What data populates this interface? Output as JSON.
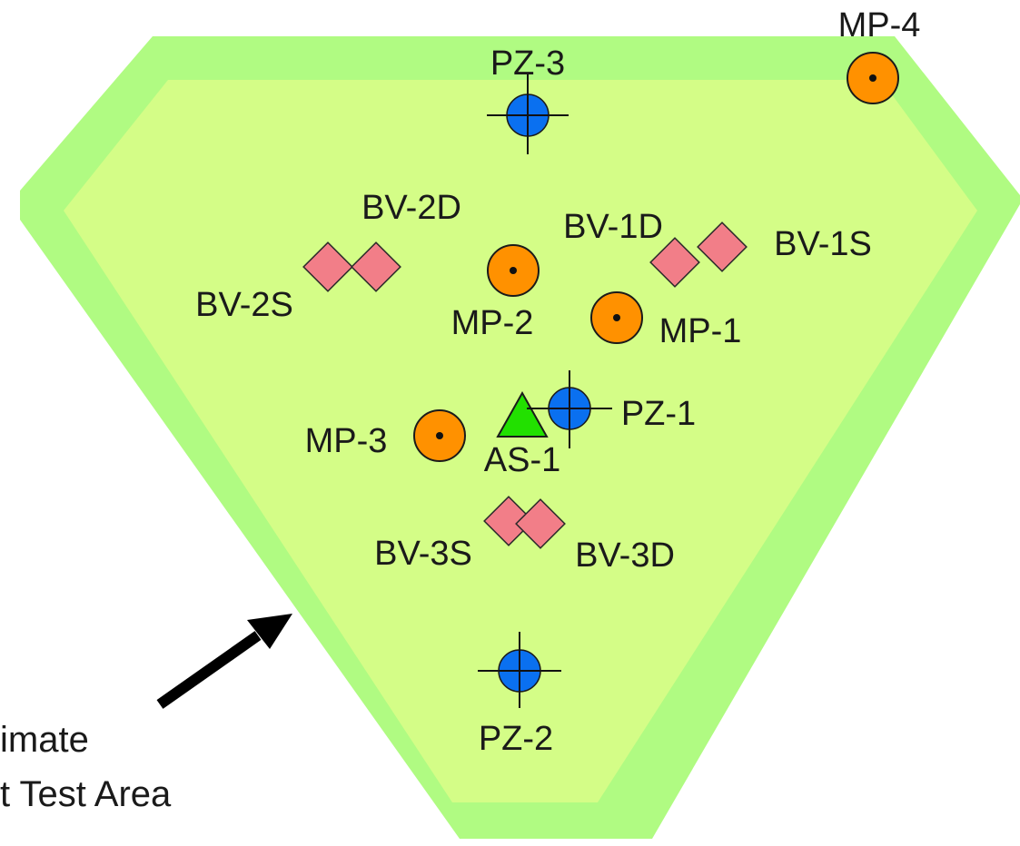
{
  "colors": {
    "outer_zone": "#b0fb82",
    "inner_zone": "#d4fd87",
    "monitoring_point": "#ff9100",
    "piezometer": "#0a70f0",
    "borehole": "#f27e88",
    "air_sparge": "#22e000",
    "arrow": "#000000"
  },
  "legend_note": {
    "line1": "imate",
    "line2": "t Test Area"
  },
  "monitoring_points": [
    {
      "id": "MP-1",
      "label": "MP-1"
    },
    {
      "id": "MP-2",
      "label": "MP-2"
    },
    {
      "id": "MP-3",
      "label": "MP-3"
    },
    {
      "id": "MP-4",
      "label": "MP-4"
    }
  ],
  "piezometers": [
    {
      "id": "PZ-1",
      "label": "PZ-1"
    },
    {
      "id": "PZ-2",
      "label": "PZ-2"
    },
    {
      "id": "PZ-3",
      "label": "PZ-3"
    }
  ],
  "boreholes": [
    {
      "id": "BV-1D",
      "label": "BV-1D"
    },
    {
      "id": "BV-1S",
      "label": "BV-1S"
    },
    {
      "id": "BV-2D",
      "label": "BV-2D"
    },
    {
      "id": "BV-2S",
      "label": "BV-2S"
    },
    {
      "id": "BV-3S",
      "label": "BV-3S"
    },
    {
      "id": "BV-3D",
      "label": "BV-3D"
    }
  ],
  "air_sparge": {
    "id": "AS-1",
    "label": "AS-1"
  }
}
